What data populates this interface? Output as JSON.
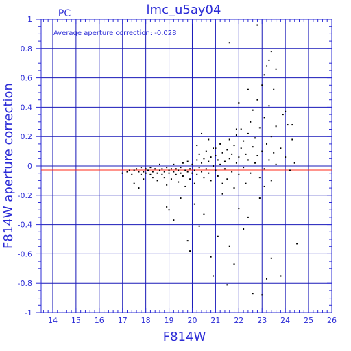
{
  "colors": {
    "axis": "#2b2bd6",
    "grid": "#1a1ab8",
    "reference": "#ff2a1a",
    "points": "#000000",
    "background": "#ffffff"
  },
  "chart_data": {
    "type": "scatter",
    "title": "lmc_u5ay04",
    "corner_label": "PC",
    "annotation": "Average aperture correction: -0.028",
    "xlabel": "F814W",
    "ylabel": "F814W aperture correction",
    "xlim": [
      13.5,
      26
    ],
    "ylim": [
      -1,
      1
    ],
    "x_ticks": [
      14,
      15,
      16,
      17,
      18,
      19,
      20,
      21,
      22,
      23,
      24,
      25,
      26
    ],
    "y_ticks": [
      -1,
      -0.8,
      -0.6,
      -0.4,
      -0.2,
      0,
      0.2,
      0.4,
      0.6,
      0.8,
      1
    ],
    "x_tick_labels": [
      "14",
      "15",
      "16",
      "17",
      "18",
      "19",
      "20",
      "21",
      "22",
      "23",
      "24",
      "25",
      "26"
    ],
    "y_tick_labels": [
      "-1",
      "-0.8",
      "-0.6",
      "-0.4",
      "-0.2",
      "0",
      "0.2",
      "0.4",
      "0.6",
      "0.8",
      "1"
    ],
    "grid": true,
    "zero_line": 0,
    "average_line": -0.028,
    "series": [
      {
        "marker": "dot",
        "points": [
          [
            17.0,
            -0.05
          ],
          [
            17.2,
            -0.04
          ],
          [
            17.3,
            -0.03
          ],
          [
            17.4,
            -0.06
          ],
          [
            17.5,
            -0.03
          ],
          [
            17.5,
            -0.12
          ],
          [
            17.6,
            -0.02
          ],
          [
            17.7,
            -0.04
          ],
          [
            17.7,
            -0.15
          ],
          [
            17.8,
            -0.06
          ],
          [
            17.8,
            -0.01
          ],
          [
            17.9,
            -0.04
          ],
          [
            17.9,
            -0.09
          ],
          [
            18.0,
            -0.02
          ],
          [
            18.0,
            -0.05
          ],
          [
            18.1,
            -0.03
          ],
          [
            18.2,
            -0.06
          ],
          [
            18.2,
            -0.01
          ],
          [
            18.3,
            -0.04
          ],
          [
            18.3,
            -0.08
          ],
          [
            18.4,
            -0.02
          ],
          [
            18.5,
            -0.05
          ],
          [
            18.5,
            -0.1
          ],
          [
            18.6,
            -0.03
          ],
          [
            18.6,
            0.01
          ],
          [
            18.7,
            -0.06
          ],
          [
            18.7,
            -0.02
          ],
          [
            18.8,
            -0.04
          ],
          [
            18.8,
            -0.08
          ],
          [
            18.9,
            -0.01
          ],
          [
            18.9,
            -0.13
          ],
          [
            19.0,
            -0.03
          ],
          [
            19.0,
            -0.05
          ],
          [
            19.1,
            -0.02
          ],
          [
            19.1,
            -0.09
          ],
          [
            19.2,
            -0.04
          ],
          [
            19.2,
            0.01
          ],
          [
            19.3,
            -0.06
          ],
          [
            19.3,
            -0.02
          ],
          [
            19.4,
            -0.03
          ],
          [
            19.4,
            -0.11
          ],
          [
            19.5,
            -0.01
          ],
          [
            19.5,
            -0.05
          ],
          [
            19.6,
            -0.07
          ],
          [
            19.6,
            0.02
          ],
          [
            19.7,
            -0.03
          ],
          [
            19.7,
            -0.14
          ],
          [
            19.8,
            -0.04
          ],
          [
            19.8,
            0.03
          ],
          [
            19.9,
            -0.02
          ],
          [
            19.9,
            -0.09
          ],
          [
            20.0,
            -0.05
          ],
          [
            20.0,
            0.01
          ],
          [
            20.1,
            -0.03
          ],
          [
            20.1,
            -0.12
          ],
          [
            20.2,
            0.04
          ],
          [
            20.2,
            -0.06
          ],
          [
            20.3,
            -0.01
          ],
          [
            20.3,
            0.08
          ],
          [
            20.4,
            -0.04
          ],
          [
            20.4,
            0.02
          ],
          [
            20.5,
            -0.08
          ],
          [
            20.5,
            0.05
          ],
          [
            20.6,
            -0.02
          ],
          [
            20.6,
            0.1
          ],
          [
            20.7,
            -0.05
          ],
          [
            20.7,
            0.03
          ],
          [
            20.8,
            -0.1
          ],
          [
            20.8,
            0.06
          ],
          [
            20.9,
            0.0
          ],
          [
            20.9,
            0.12
          ],
          [
            21.0,
            -0.03
          ],
          [
            21.0,
            0.07
          ],
          [
            21.1,
            -0.07
          ],
          [
            21.1,
            0.04
          ],
          [
            21.2,
            0.01
          ],
          [
            21.2,
            0.15
          ],
          [
            21.3,
            -0.12
          ],
          [
            21.3,
            0.09
          ],
          [
            21.4,
            0.03
          ],
          [
            21.4,
            -0.02
          ],
          [
            21.5,
            0.11
          ],
          [
            21.5,
            -0.09
          ],
          [
            21.6,
            0.05
          ],
          [
            21.6,
            0.18
          ],
          [
            21.7,
            -0.04
          ],
          [
            21.7,
            0.08
          ],
          [
            21.8,
            0.14
          ],
          [
            21.8,
            -0.15
          ],
          [
            21.9,
            0.02
          ],
          [
            21.9,
            0.21
          ],
          [
            22.0,
            0.06
          ],
          [
            22.0,
            -0.06
          ],
          [
            22.1,
            0.12
          ],
          [
            22.1,
            0.25
          ],
          [
            22.2,
            -0.01
          ],
          [
            22.2,
            0.17
          ],
          [
            22.3,
            0.08
          ],
          [
            22.3,
            -0.12
          ],
          [
            22.4,
            0.22
          ],
          [
            22.4,
            0.04
          ],
          [
            22.5,
            0.3
          ],
          [
            22.5,
            -0.05
          ],
          [
            22.6,
            0.13
          ],
          [
            22.6,
            0.38
          ],
          [
            22.7,
            0.02
          ],
          [
            22.7,
            0.19
          ],
          [
            22.8,
            0.07
          ],
          [
            22.8,
            0.45
          ],
          [
            22.9,
            -0.08
          ],
          [
            22.9,
            0.26
          ],
          [
            23.0,
            0.1
          ],
          [
            23.0,
            0.55
          ],
          [
            23.1,
            -0.02
          ],
          [
            23.1,
            0.33
          ],
          [
            23.2,
            0.15
          ],
          [
            23.2,
            0.68
          ],
          [
            23.3,
            0.04
          ],
          [
            23.3,
            0.41
          ],
          [
            23.4,
            0.2
          ],
          [
            23.4,
            -0.1
          ],
          [
            23.5,
            0.09
          ],
          [
            23.5,
            0.52
          ],
          [
            23.6,
            0.27
          ],
          [
            23.6,
            0.01
          ],
          [
            23.8,
            0.12
          ],
          [
            23.9,
            0.35
          ],
          [
            24.0,
            0.06
          ],
          [
            24.1,
            0.28
          ],
          [
            24.2,
            -0.03
          ],
          [
            24.3,
            0.18
          ],
          [
            19.0,
            -0.3
          ],
          [
            19.2,
            -0.37
          ],
          [
            18.9,
            -0.28
          ],
          [
            19.5,
            -0.22
          ],
          [
            19.8,
            -0.51
          ],
          [
            19.9,
            -0.58
          ],
          [
            20.1,
            -0.26
          ],
          [
            20.3,
            -0.41
          ],
          [
            20.5,
            -0.33
          ],
          [
            20.8,
            -0.62
          ],
          [
            20.9,
            -0.75
          ],
          [
            21.1,
            -0.48
          ],
          [
            21.3,
            -0.19
          ],
          [
            21.5,
            -0.81
          ],
          [
            21.6,
            -0.55
          ],
          [
            21.8,
            -0.67
          ],
          [
            22.0,
            -0.29
          ],
          [
            22.2,
            -0.43
          ],
          [
            22.4,
            -0.35
          ],
          [
            22.6,
            -0.87
          ],
          [
            23.0,
            -0.88
          ],
          [
            23.2,
            -0.77
          ],
          [
            23.4,
            -0.63
          ],
          [
            23.8,
            -0.75
          ],
          [
            24.5,
            -0.53
          ],
          [
            22.9,
            -0.22
          ],
          [
            23.1,
            -0.14
          ],
          [
            24.4,
            0.02
          ],
          [
            21.6,
            0.84
          ],
          [
            22.8,
            0.96
          ],
          [
            22.4,
            0.52
          ],
          [
            23.1,
            0.62
          ],
          [
            23.3,
            0.72
          ],
          [
            23.4,
            0.78
          ],
          [
            23.6,
            0.66
          ],
          [
            24.0,
            0.37
          ],
          [
            24.3,
            0.28
          ],
          [
            22.0,
            0.43
          ],
          [
            21.9,
            0.25
          ],
          [
            20.2,
            0.14
          ],
          [
            20.4,
            0.22
          ],
          [
            21.0,
            0.12
          ],
          [
            20.7,
            0.18
          ]
        ]
      }
    ]
  }
}
